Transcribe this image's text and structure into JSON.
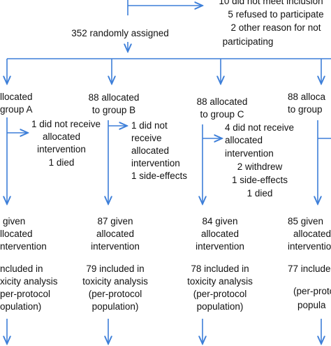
{
  "exclusions": [
    "10 did not meet inclusion",
    "5 refused to participate",
    "2 other reason for not",
    "participating"
  ],
  "randomized": "352 randomly assigned",
  "groups": [
    {
      "allocation": [
        "llocated",
        "group A"
      ],
      "losses": [
        "1 did not receive",
        "allocated",
        "intervention",
        "1 died"
      ],
      "given": [
        "given",
        "llocated",
        "ntervention"
      ],
      "analysis": [
        "ncluded in",
        "xicity analysis",
        "per-protocol",
        "opulation)"
      ]
    },
    {
      "allocation": [
        "88 allocated",
        "to group B"
      ],
      "losses": [
        "1 did not",
        "receive",
        "allocated",
        "intervention",
        "1 side-effects"
      ],
      "given": [
        "87 given",
        "allocated",
        "intervention"
      ],
      "analysis": [
        "79 included in",
        "toxicity analysis",
        "(per-protocol",
        "population)"
      ]
    },
    {
      "allocation": [
        "88 allocated",
        "to group C"
      ],
      "losses": [
        "4 did not receive",
        "allocated",
        "intervention",
        "2 withdrew",
        "1 side-effects",
        "1 died"
      ],
      "given": [
        "84 given",
        "allocated",
        "intervention"
      ],
      "analysis": [
        "78 included in",
        "toxicity analysis",
        "(per-protocol",
        "population)"
      ]
    },
    {
      "allocation": [
        "88 alloca",
        "to group"
      ],
      "losses": [],
      "given": [
        "85 given",
        "allocated",
        "intervention"
      ],
      "analysis": [
        "77 include",
        "(per-proto",
        "popula"
      ]
    }
  ]
}
